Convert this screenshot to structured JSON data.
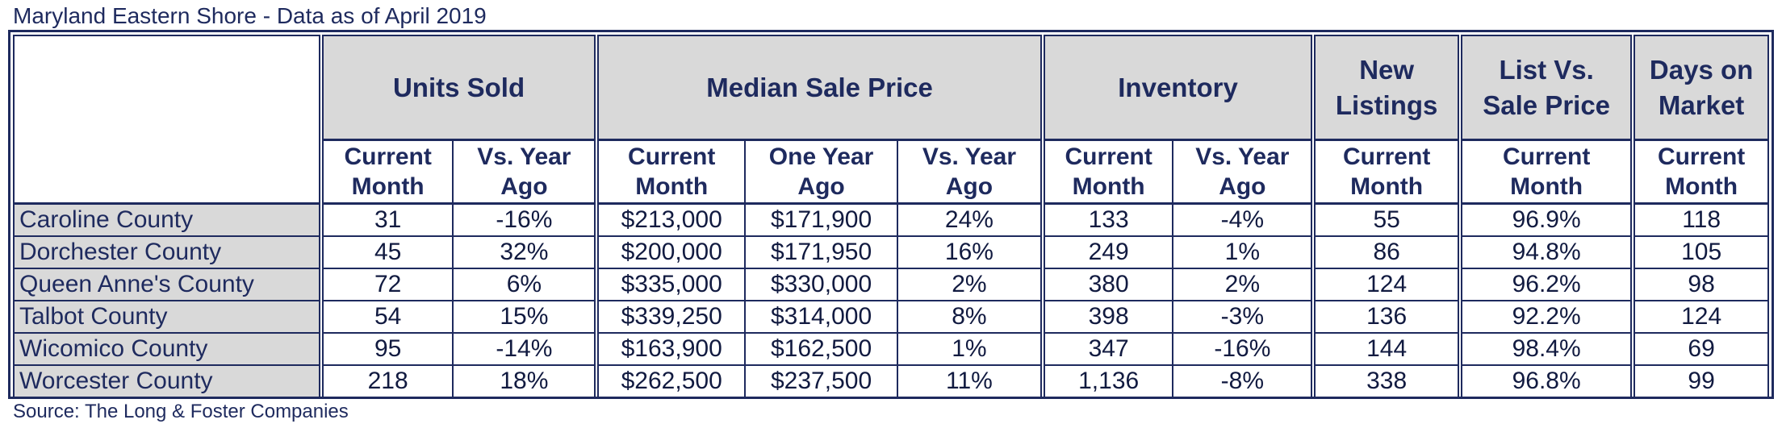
{
  "title": "Maryland Eastern Shore - Data as of April 2019",
  "source": "Source: The Long & Foster Companies",
  "colors": {
    "header_fill": "#d9d9d9",
    "border": "#1e2a5e",
    "text": "#1e2a5e"
  },
  "groups": {
    "units_sold": "Units Sold",
    "median_sale_price": "Median Sale Price",
    "inventory": "Inventory",
    "new_listings": [
      "New",
      "Listings"
    ],
    "list_vs_sale": [
      "List Vs.",
      "Sale Price"
    ],
    "days_on_market": [
      "Days on",
      "Market"
    ]
  },
  "subheaders": {
    "current_month": [
      "Current",
      "Month"
    ],
    "vs_year_ago": [
      "Vs. Year",
      "Ago"
    ],
    "one_year_ago": [
      "One Year",
      "Ago"
    ]
  },
  "rows": [
    [
      "Caroline County",
      "31",
      "-16%",
      "$213,000",
      "$171,900",
      "24%",
      "133",
      "-4%",
      "55",
      "96.9%",
      "118"
    ],
    [
      "Dorchester County",
      "45",
      "32%",
      "$200,000",
      "$171,950",
      "16%",
      "249",
      "1%",
      "86",
      "94.8%",
      "105"
    ],
    [
      "Queen Anne's County",
      "72",
      "6%",
      "$335,000",
      "$330,000",
      "2%",
      "380",
      "2%",
      "124",
      "96.2%",
      "98"
    ],
    [
      "Talbot County",
      "54",
      "15%",
      "$339,250",
      "$314,000",
      "8%",
      "398",
      "-3%",
      "136",
      "92.2%",
      "124"
    ],
    [
      "Wicomico County",
      "95",
      "-14%",
      "$163,900",
      "$162,500",
      "1%",
      "347",
      "-16%",
      "144",
      "98.4%",
      "69"
    ],
    [
      "Worcester County",
      "218",
      "18%",
      "$262,500",
      "$237,500",
      "11%",
      "1,136",
      "-8%",
      "338",
      "96.8%",
      "99"
    ]
  ]
}
